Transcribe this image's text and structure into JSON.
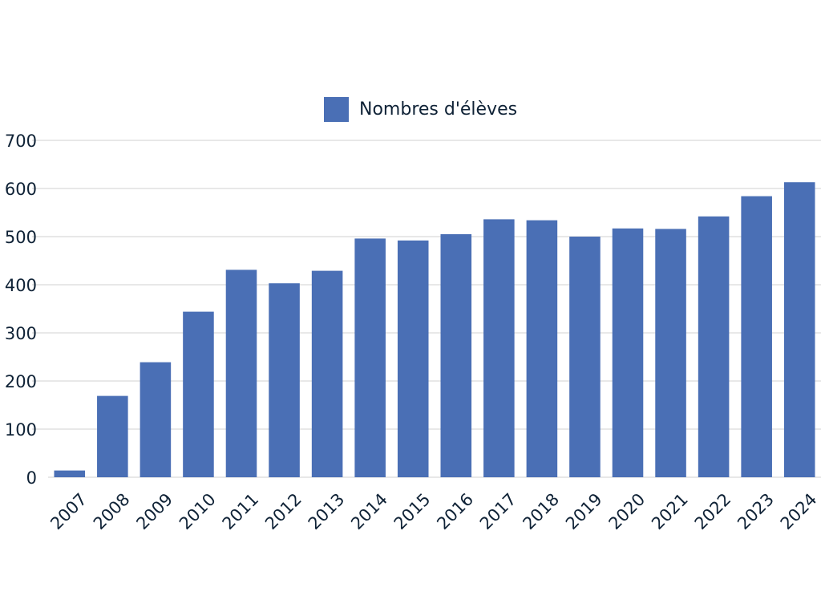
{
  "chart_data": {
    "type": "bar",
    "title": "",
    "xlabel": "",
    "ylabel": "",
    "categories": [
      "2007",
      "2008",
      "2009",
      "2010",
      "2011",
      "2012",
      "2013",
      "2014",
      "2015",
      "2016",
      "2017",
      "2018",
      "2019",
      "2020",
      "2021",
      "2022",
      "2023",
      "2024"
    ],
    "series": [
      {
        "name": "Nombres d'élèves",
        "values": [
          14,
          169,
          239,
          344,
          431,
          403,
          429,
          496,
          492,
          505,
          536,
          534,
          500,
          517,
          516,
          542,
          584,
          613
        ],
        "color": "#4a6fb5"
      }
    ],
    "ylim": [
      0,
      700
    ],
    "yticks": [
      0,
      100,
      200,
      300,
      400,
      500,
      600,
      700
    ],
    "grid": true,
    "legend_position": "top-center",
    "grid_color": "#d0d0d0",
    "text_color": "#0f2236"
  }
}
